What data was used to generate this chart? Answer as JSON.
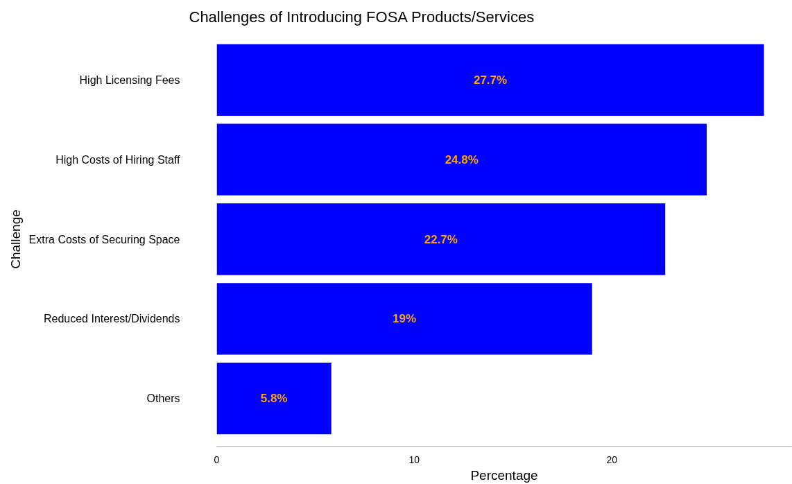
{
  "chart_data": {
    "type": "bar",
    "orientation": "horizontal",
    "title": "Challenges of Introducing FOSA Products/Services",
    "xlabel": "Percentage",
    "ylabel": "Challenge",
    "categories": [
      "High Licensing Fees",
      "High Costs of Hiring Staff",
      "Extra Costs of Securing Space",
      "Reduced Interest/Dividends",
      "Others"
    ],
    "values": [
      27.7,
      24.8,
      22.7,
      19,
      5.8
    ],
    "color": "#0000ff",
    "value_labels": [
      "27.7%",
      "24.8%",
      "22.7%",
      "19%",
      "5.8%"
    ],
    "xlim": [
      0,
      29.1
    ],
    "xticks": [
      0,
      10,
      20
    ]
  }
}
